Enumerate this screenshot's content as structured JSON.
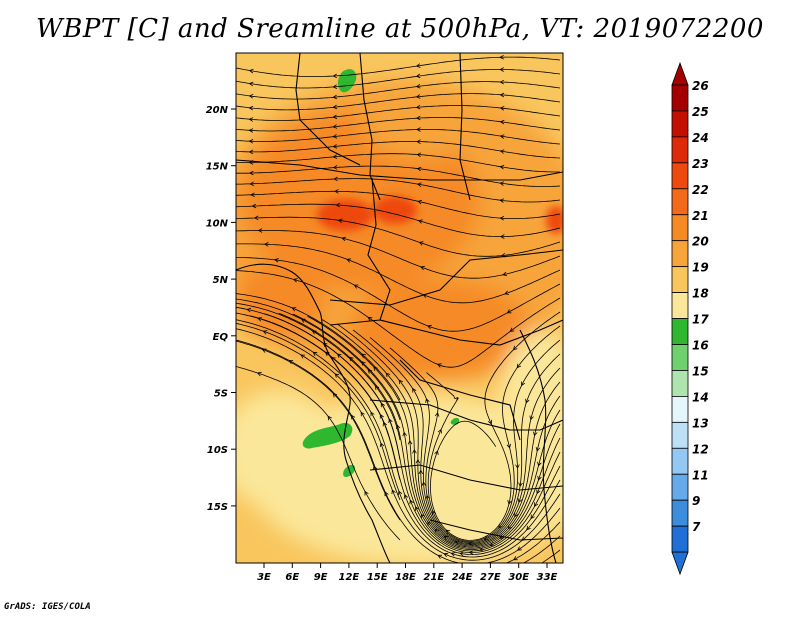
{
  "title": "WBPT [C] and Sreamline at 500hPa, VT: 2019072200",
  "credit": "GrADS: IGES/COLA",
  "map": {
    "y_ticks": [
      "20N",
      "15N",
      "10N",
      "5N",
      "EQ",
      "5S",
      "10S",
      "15S"
    ],
    "x_ticks": [
      "3E",
      "6E",
      "9E",
      "12E",
      "15E",
      "18E",
      "21E",
      "24E",
      "27E",
      "30E",
      "33E"
    ]
  },
  "colorbar": {
    "labels": [
      "26",
      "25",
      "24",
      "23",
      "22",
      "21",
      "20",
      "19",
      "18",
      "17",
      "16",
      "15",
      "14",
      "13",
      "12",
      "11",
      "9",
      "7"
    ],
    "colors": [
      "#a50000",
      "#c41000",
      "#dd2a08",
      "#ee4a10",
      "#f26a1a",
      "#f58a25",
      "#f7a43a",
      "#f9c65e",
      "#fbe79a",
      "#2fb82f",
      "#6ed06e",
      "#aee5ae",
      "#e4f5fb",
      "#bde0f7",
      "#93c8f2",
      "#65abe9",
      "#3d8ddf",
      "#1f6fd6"
    ],
    "top_arrow_color": "#a50000",
    "bottom_arrow_color": "#1f6fd6"
  }
}
